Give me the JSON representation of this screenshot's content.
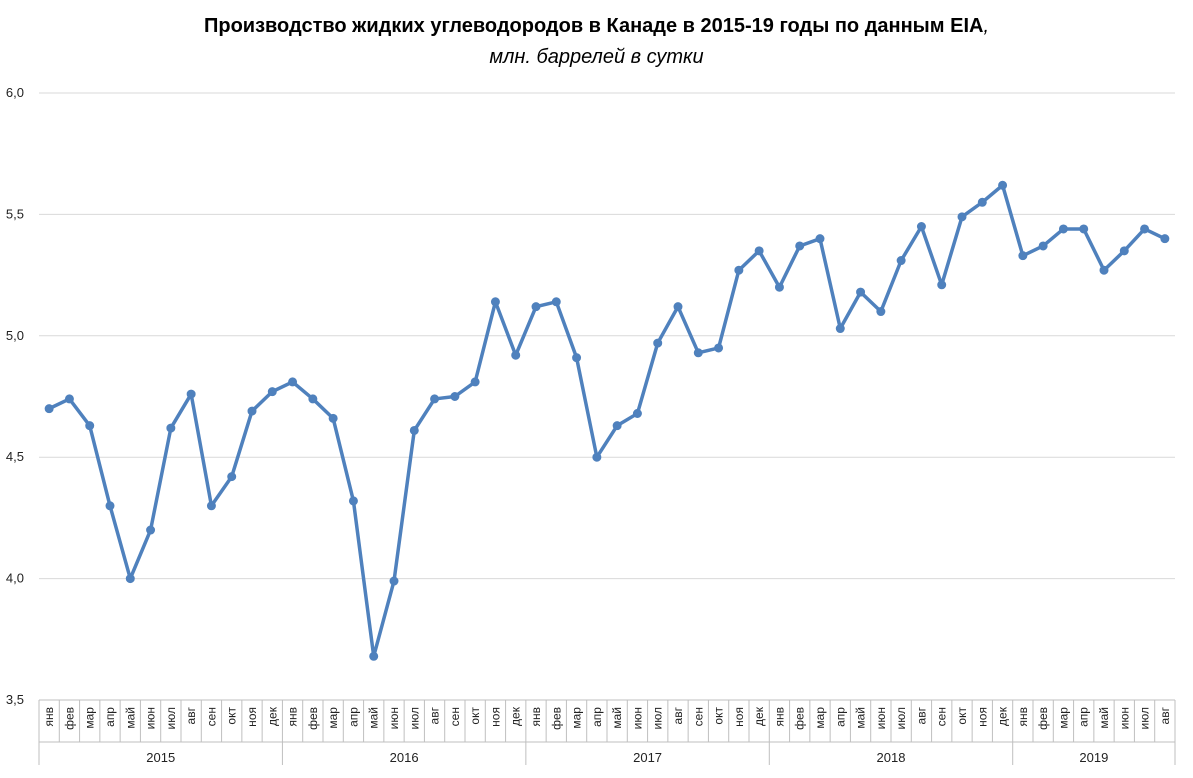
{
  "chart_data": {
    "type": "line",
    "title": "Производство жидких углеводородов в Канаде в 2015-19 годы по данным EIA",
    "title_suffix": ",",
    "subtitle": "млн. баррелей в сутки",
    "ylim": [
      3.5,
      6.0
    ],
    "y_ticks": [
      "3,5",
      "4,0",
      "4,5",
      "5,0",
      "5,5",
      "6,0"
    ],
    "y_tick_values": [
      3.5,
      4.0,
      4.5,
      5.0,
      5.5,
      6.0
    ],
    "grid": true,
    "years": [
      "2015",
      "2016",
      "2017",
      "2018",
      "2019"
    ],
    "months": [
      "янв",
      "фев",
      "мар",
      "апр",
      "май",
      "июн",
      "июл",
      "авг",
      "сен",
      "окт",
      "ноя",
      "дек"
    ],
    "series": [
      {
        "color": "#4F81BD",
        "values": [
          4.7,
          4.74,
          4.63,
          4.3,
          4.0,
          4.2,
          4.62,
          4.76,
          4.3,
          4.42,
          4.69,
          4.77,
          4.81,
          4.74,
          4.66,
          4.32,
          3.68,
          3.99,
          4.61,
          4.74,
          4.75,
          4.81,
          5.14,
          4.92,
          5.12,
          5.14,
          4.91,
          4.5,
          4.63,
          4.68,
          4.97,
          5.12,
          4.93,
          4.95,
          5.27,
          5.35,
          5.2,
          5.37,
          5.4,
          5.03,
          5.18,
          5.1,
          5.31,
          5.45,
          5.21,
          5.49,
          5.55,
          5.62,
          5.33,
          5.37,
          5.44,
          5.44,
          5.27,
          5.35,
          5.44,
          5.4
        ]
      }
    ]
  }
}
